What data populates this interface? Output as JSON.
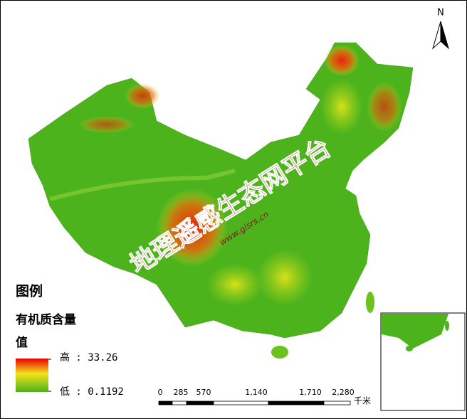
{
  "north_arrow": "N",
  "watermark": {
    "title": "地理遥感生态网平台",
    "url": "www.gisrs.cn"
  },
  "legend": {
    "heading": "图例",
    "layer": "有机质含量",
    "field": "值",
    "high": "高 : 33.26",
    "low": "低 : 0.1192"
  },
  "scale_bar": {
    "labels": [
      "0",
      "285",
      "570",
      "1,140",
      "1,710",
      "2,280"
    ],
    "unit": "千米"
  }
}
